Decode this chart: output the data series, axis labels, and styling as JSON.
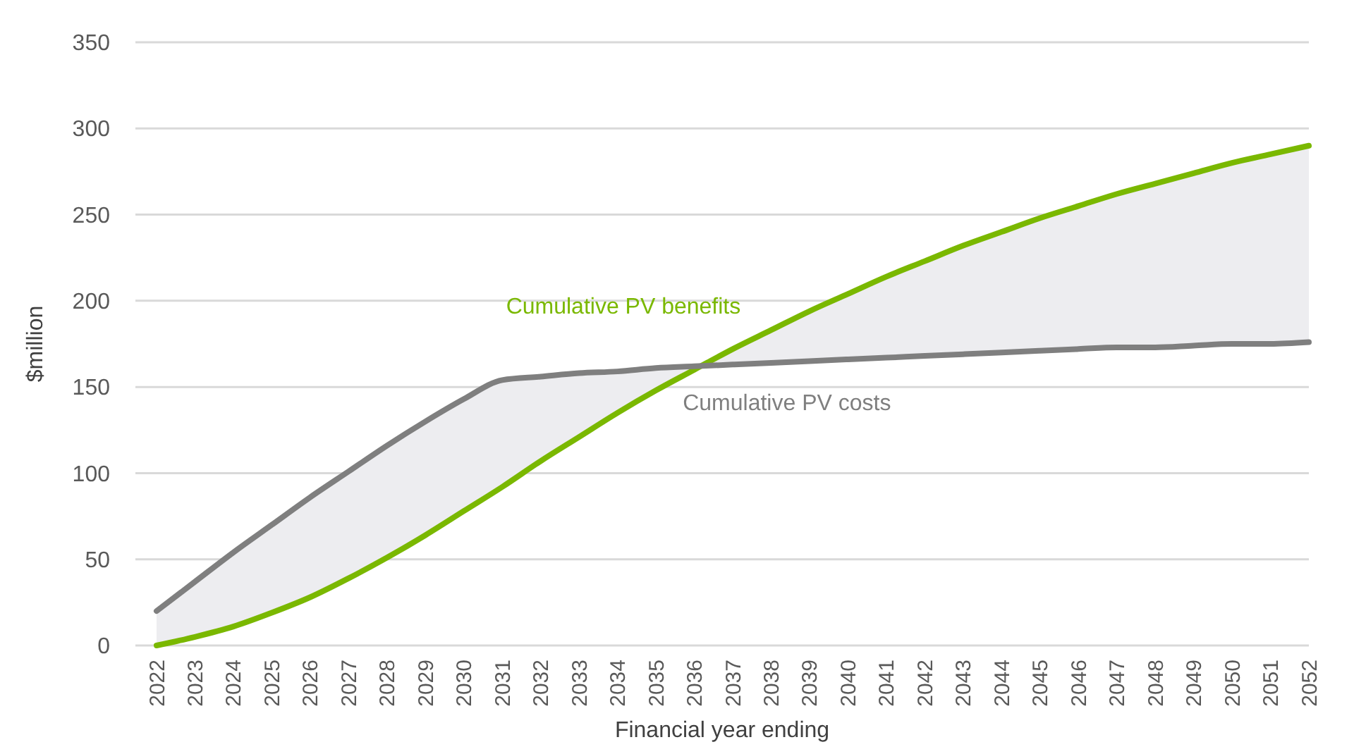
{
  "chart_data": {
    "type": "line",
    "xlabel": "Financial year ending",
    "ylabel": "$million",
    "categories": [
      "2022",
      "2023",
      "2024",
      "2025",
      "2026",
      "2027",
      "2028",
      "2029",
      "2030",
      "2031",
      "2032",
      "2033",
      "2034",
      "2035",
      "2036",
      "2037",
      "2038",
      "2039",
      "2040",
      "2041",
      "2042",
      "2043",
      "2044",
      "2045",
      "2046",
      "2047",
      "2048",
      "2049",
      "2050",
      "2051",
      "2052"
    ],
    "series": [
      {
        "name": "Cumulative PV benefits",
        "color": "#7ab800",
        "values": [
          0,
          5,
          11,
          19,
          28,
          39,
          51,
          64,
          78,
          92,
          107,
          121,
          135,
          148,
          160,
          172,
          183,
          194,
          204,
          214,
          223,
          232,
          240,
          248,
          255,
          262,
          268,
          274,
          280,
          285,
          290
        ],
        "lower": [
          20,
          37,
          54,
          70,
          86,
          101,
          116,
          130,
          143,
          154,
          156,
          158,
          159,
          161,
          162,
          163,
          164,
          165,
          166,
          167,
          168,
          169,
          170,
          171,
          172,
          173,
          173,
          174,
          175,
          175,
          176
        ],
        "upper": [
          0,
          5,
          11,
          19,
          28,
          39,
          51,
          64,
          78,
          92,
          107,
          121,
          135,
          148,
          160,
          172,
          183,
          194,
          204,
          214,
          223,
          232,
          240,
          248,
          255,
          262,
          268,
          274,
          280,
          285,
          290
        ]
      },
      {
        "name": "Cumulative PV costs",
        "color": "#7f7f7f",
        "values": [
          20,
          37,
          54,
          70,
          86,
          101,
          116,
          130,
          143,
          154,
          156,
          158,
          159,
          161,
          162,
          163,
          164,
          165,
          166,
          167,
          168,
          169,
          170,
          171,
          172,
          173,
          173,
          174,
          175,
          175,
          176
        ]
      }
    ],
    "ylim": [
      0,
      350
    ],
    "yticks": [
      0,
      50,
      100,
      150,
      200,
      250,
      300,
      350
    ],
    "grid": "y"
  }
}
